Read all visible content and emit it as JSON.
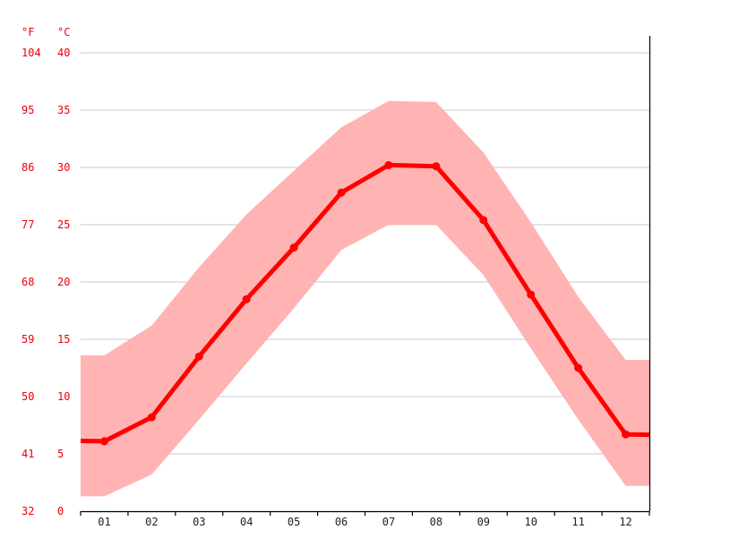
{
  "chart_data": {
    "type": "line",
    "title": "",
    "xlabel": "",
    "ylabel": "",
    "units": {
      "fahrenheit": "°F",
      "celsius": "°C"
    },
    "categories": [
      "01",
      "02",
      "03",
      "04",
      "05",
      "06",
      "07",
      "08",
      "09",
      "10",
      "11",
      "12"
    ],
    "y_ticks_celsius": [
      "0",
      "5",
      "10",
      "15",
      "20",
      "25",
      "30",
      "35",
      "40"
    ],
    "y_ticks_fahrenheit": [
      "32",
      "41",
      "50",
      "59",
      "68",
      "77",
      "86",
      "95",
      "104"
    ],
    "ylim": [
      0,
      40
    ],
    "grid": true,
    "series": [
      {
        "values": [
          6.1,
          8.2,
          13.5,
          18.5,
          23.0,
          27.8,
          30.2,
          30.1,
          25.4,
          18.9,
          12.5,
          6.7
        ],
        "color": "#ff0000"
      }
    ],
    "range_band": {
      "color": "#ffb3b3",
      "low": [
        1.3,
        3.2,
        8.0,
        12.9,
        17.7,
        22.8,
        25.0,
        25.0,
        20.6,
        14.2,
        8.0,
        2.2
      ],
      "high": [
        13.6,
        16.2,
        21.3,
        25.9,
        29.7,
        33.5,
        35.8,
        35.7,
        31.3,
        25.2,
        18.7,
        13.2
      ]
    }
  }
}
